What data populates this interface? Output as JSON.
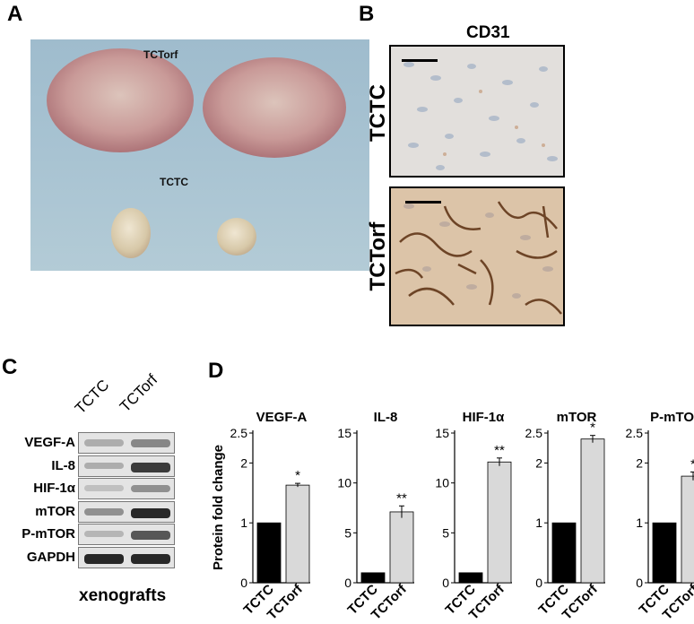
{
  "panels": {
    "a": {
      "letter": "A",
      "label_top": "TCTorf",
      "label_bottom": "TCTC"
    },
    "b": {
      "letter": "B",
      "title": "CD31",
      "rows": [
        {
          "label": "TCTC"
        },
        {
          "label": "TCTorf"
        }
      ]
    },
    "c": {
      "letter": "C",
      "lanes": [
        "TCTC",
        "TCTorf"
      ],
      "rows": [
        {
          "label": "VEGF-A",
          "intensity": [
            0.25,
            0.45
          ]
        },
        {
          "label": "IL-8",
          "intensity": [
            0.25,
            0.85
          ]
        },
        {
          "label": "HIF-1α",
          "intensity": [
            0.15,
            0.4
          ]
        },
        {
          "label": "mTOR",
          "intensity": [
            0.4,
            0.95
          ]
        },
        {
          "label": "P-mTOR",
          "intensity": [
            0.2,
            0.7
          ]
        },
        {
          "label": "GAPDH",
          "intensity": [
            0.95,
            0.95
          ]
        }
      ],
      "footer": "xenografts"
    },
    "d": {
      "letter": "D",
      "ylabel": "Protein fold change"
    }
  },
  "colors": {
    "tctc_bar": "#000000",
    "tctorf_bar": "#d9d9d9"
  },
  "chart_data": [
    {
      "type": "bar",
      "title": "VEGF-A",
      "categories": [
        "TCTC",
        "TCTorf"
      ],
      "values": [
        1.0,
        1.63
      ],
      "errors": [
        0,
        0.03
      ],
      "significance": [
        "",
        "*"
      ],
      "ylim": [
        0,
        2.5
      ],
      "yticks": [
        0,
        1,
        2,
        2.5
      ],
      "ylabel": "Protein fold change"
    },
    {
      "type": "bar",
      "title": "IL-8",
      "categories": [
        "TCTC",
        "TCTorf"
      ],
      "values": [
        1.0,
        7.1
      ],
      "errors": [
        0,
        0.6
      ],
      "significance": [
        "",
        "**"
      ],
      "ylim": [
        0,
        15
      ],
      "yticks": [
        0,
        5,
        10,
        15
      ]
    },
    {
      "type": "bar",
      "title": "HIF-1α",
      "categories": [
        "TCTC",
        "TCTorf"
      ],
      "values": [
        1.0,
        12.1
      ],
      "errors": [
        0,
        0.4
      ],
      "significance": [
        "",
        "**"
      ],
      "ylim": [
        0,
        15
      ],
      "yticks": [
        0,
        5,
        10,
        15
      ]
    },
    {
      "type": "bar",
      "title": "mTOR",
      "categories": [
        "TCTC",
        "TCTorf"
      ],
      "values": [
        1.0,
        2.4
      ],
      "errors": [
        0,
        0.06
      ],
      "significance": [
        "",
        "*"
      ],
      "ylim": [
        0,
        2.5
      ],
      "yticks": [
        0,
        1,
        2,
        2.5
      ]
    },
    {
      "type": "bar",
      "title": "P-mTOR",
      "categories": [
        "TCTC",
        "TCTorf"
      ],
      "values": [
        1.0,
        1.78
      ],
      "errors": [
        0,
        0.07
      ],
      "significance": [
        "",
        "*"
      ],
      "ylim": [
        0,
        2.5
      ],
      "yticks": [
        0,
        1,
        2,
        2.5
      ]
    }
  ]
}
